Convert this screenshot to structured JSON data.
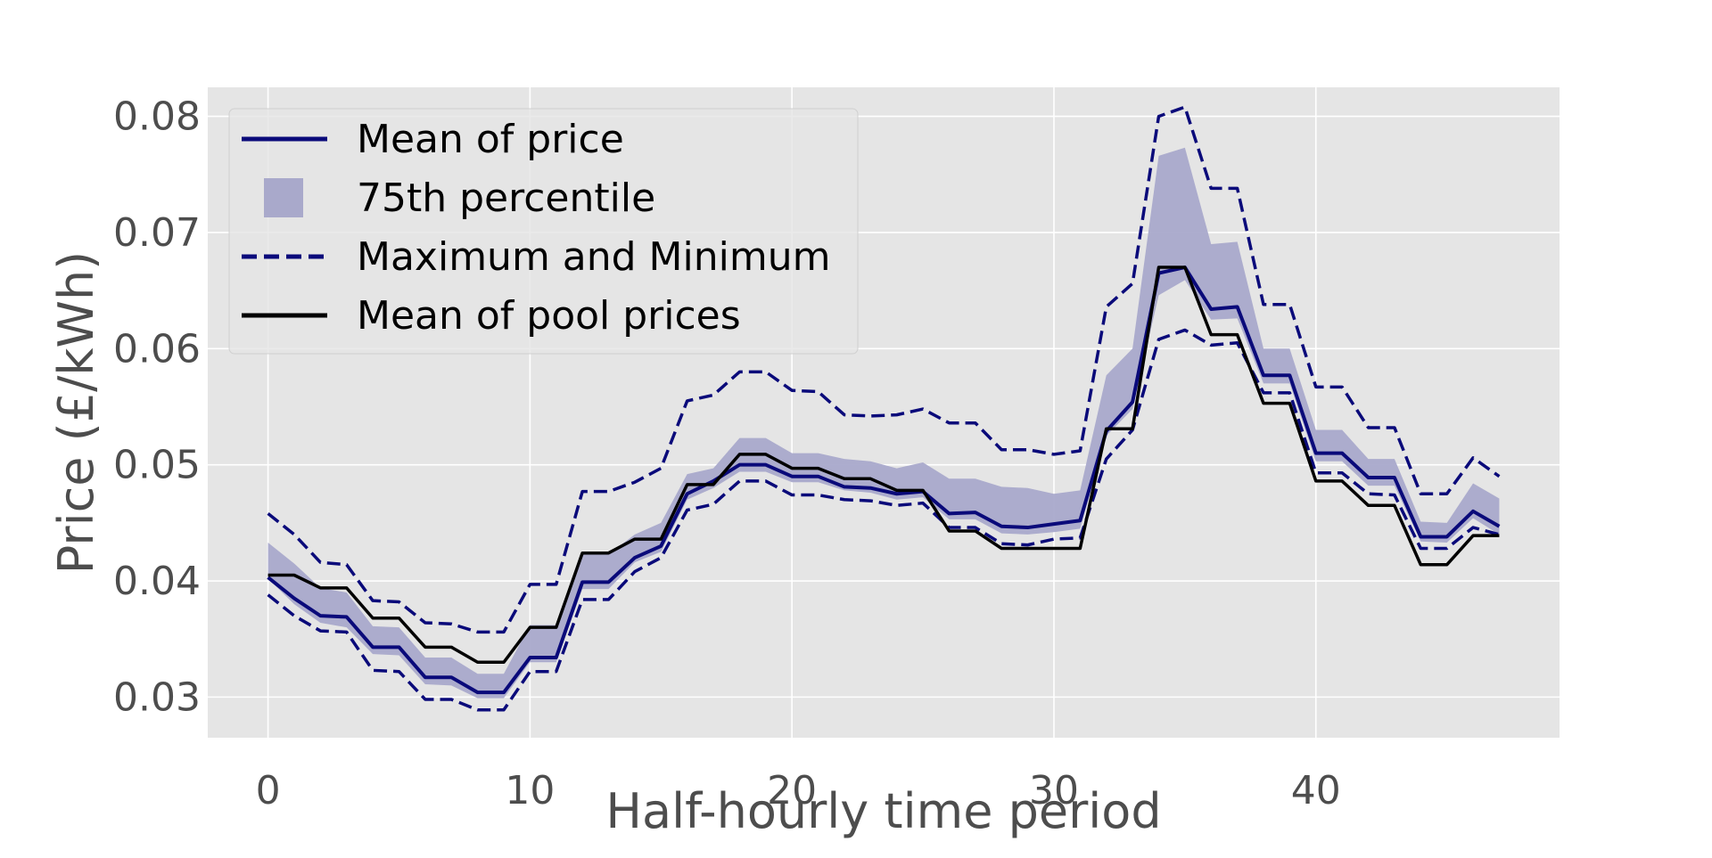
{
  "chart_data": {
    "type": "line",
    "title": "",
    "xlabel": "Half-hourly time period",
    "ylabel": "Price (£/kWh)",
    "xlim": [
      -2.3,
      49.3
    ],
    "ylim": [
      0.0265,
      0.0825
    ],
    "xticks": [
      0,
      10,
      20,
      30,
      40
    ],
    "xtick_labels": [
      "0",
      "10",
      "20",
      "30",
      "40"
    ],
    "yticks": [
      0.03,
      0.04,
      0.05,
      0.06,
      0.07,
      0.08
    ],
    "ytick_labels": [
      "0.03",
      "0.04",
      "0.05",
      "0.06",
      "0.07",
      "0.08"
    ],
    "grid": true,
    "legend_position": "top-left",
    "x": [
      0,
      1,
      2,
      3,
      4,
      5,
      6,
      7,
      8,
      9,
      10,
      11,
      12,
      13,
      14,
      15,
      16,
      17,
      18,
      19,
      20,
      21,
      22,
      23,
      24,
      25,
      26,
      27,
      28,
      29,
      30,
      31,
      32,
      33,
      34,
      35,
      36,
      37,
      38,
      39,
      40,
      41,
      42,
      43,
      44,
      45,
      46,
      47
    ],
    "series": [
      {
        "name": "75th percentile",
        "kind": "band",
        "color": "#a9a9cb",
        "lower": [
          0.0402,
          0.038,
          0.0364,
          0.036,
          0.0337,
          0.0336,
          0.0311,
          0.031,
          0.0299,
          0.0299,
          0.033,
          0.033,
          0.0393,
          0.0393,
          0.0416,
          0.0425,
          0.047,
          0.048,
          0.0494,
          0.0494,
          0.0485,
          0.0485,
          0.0478,
          0.0476,
          0.047,
          0.0472,
          0.0453,
          0.0453,
          0.0441,
          0.044,
          0.0442,
          0.0445,
          0.0525,
          0.0548,
          0.0646,
          0.0659,
          0.0625,
          0.0626,
          0.057,
          0.057,
          0.0503,
          0.0503,
          0.0482,
          0.0482,
          0.0434,
          0.0433,
          0.0454,
          0.044
        ],
        "upper": [
          0.0433,
          0.0415,
          0.0394,
          0.039,
          0.0361,
          0.036,
          0.0334,
          0.0334,
          0.032,
          0.032,
          0.0362,
          0.0362,
          0.0423,
          0.0423,
          0.044,
          0.045,
          0.0492,
          0.0497,
          0.0523,
          0.0523,
          0.051,
          0.051,
          0.0505,
          0.0503,
          0.0497,
          0.0502,
          0.0488,
          0.0488,
          0.0481,
          0.048,
          0.0475,
          0.0478,
          0.0577,
          0.06,
          0.0766,
          0.0773,
          0.069,
          0.0692,
          0.06,
          0.06,
          0.053,
          0.053,
          0.0505,
          0.0505,
          0.0451,
          0.045,
          0.0484,
          0.0471
        ]
      },
      {
        "name": "Mean of price",
        "kind": "line",
        "color": "#0a0a7a",
        "values": [
          0.0403,
          0.0385,
          0.037,
          0.0369,
          0.0343,
          0.0343,
          0.0317,
          0.0317,
          0.0304,
          0.0304,
          0.0334,
          0.0334,
          0.0399,
          0.0399,
          0.042,
          0.043,
          0.0475,
          0.0486,
          0.05,
          0.05,
          0.049,
          0.049,
          0.0481,
          0.048,
          0.0475,
          0.0477,
          0.0458,
          0.0459,
          0.0447,
          0.0446,
          0.0449,
          0.0452,
          0.0529,
          0.0554,
          0.0665,
          0.067,
          0.0634,
          0.0636,
          0.0577,
          0.0577,
          0.051,
          0.051,
          0.0489,
          0.0489,
          0.0438,
          0.0438,
          0.046,
          0.0447
        ]
      },
      {
        "name": "Maximum",
        "kind": "dashed",
        "color": "#0a0a7a",
        "values": [
          0.0458,
          0.044,
          0.0416,
          0.0414,
          0.0383,
          0.0382,
          0.0364,
          0.0363,
          0.0356,
          0.0356,
          0.0397,
          0.0397,
          0.0477,
          0.0477,
          0.0485,
          0.0497,
          0.0555,
          0.056,
          0.058,
          0.058,
          0.0564,
          0.0563,
          0.0543,
          0.0542,
          0.0543,
          0.0548,
          0.0536,
          0.0536,
          0.0513,
          0.0513,
          0.0509,
          0.0512,
          0.0636,
          0.0656,
          0.08,
          0.0808,
          0.0738,
          0.0738,
          0.0638,
          0.0638,
          0.0567,
          0.0567,
          0.0532,
          0.0532,
          0.0475,
          0.0475,
          0.0506,
          0.049
        ]
      },
      {
        "name": "Minimum",
        "kind": "dashed",
        "color": "#0a0a7a",
        "values": [
          0.0388,
          0.037,
          0.0357,
          0.0356,
          0.0323,
          0.0322,
          0.0298,
          0.0298,
          0.0289,
          0.0289,
          0.0322,
          0.0322,
          0.0384,
          0.0384,
          0.0408,
          0.042,
          0.0461,
          0.0466,
          0.0486,
          0.0486,
          0.0474,
          0.0474,
          0.047,
          0.0469,
          0.0465,
          0.0467,
          0.0446,
          0.0446,
          0.0432,
          0.0431,
          0.0436,
          0.0437,
          0.0505,
          0.053,
          0.0608,
          0.0616,
          0.0603,
          0.0605,
          0.0562,
          0.0562,
          0.0493,
          0.0493,
          0.0475,
          0.0474,
          0.0428,
          0.0428,
          0.0446,
          0.044
        ]
      },
      {
        "name": "Mean of pool prices",
        "kind": "line",
        "color": "#000000",
        "values": [
          0.0405,
          0.0405,
          0.0394,
          0.0394,
          0.0368,
          0.0368,
          0.0343,
          0.0343,
          0.033,
          0.033,
          0.036,
          0.036,
          0.0424,
          0.0424,
          0.0436,
          0.0436,
          0.0483,
          0.0483,
          0.0509,
          0.0509,
          0.0497,
          0.0497,
          0.0488,
          0.0488,
          0.0478,
          0.0478,
          0.0443,
          0.0443,
          0.0428,
          0.0428,
          0.0428,
          0.0428,
          0.0531,
          0.0531,
          0.067,
          0.067,
          0.0612,
          0.0612,
          0.0553,
          0.0553,
          0.0486,
          0.0486,
          0.0465,
          0.0465,
          0.0414,
          0.0414,
          0.0439,
          0.0439
        ]
      }
    ],
    "legend": [
      {
        "label": "Mean of price",
        "style": "line",
        "color": "#0a0a7a"
      },
      {
        "label": "75th percentile",
        "style": "patch",
        "color": "#a9a9cb"
      },
      {
        "label": "Maximum and Minimum",
        "style": "dashed",
        "color": "#0a0a7a"
      },
      {
        "label": "Mean of pool prices",
        "style": "line",
        "color": "#000000"
      }
    ]
  }
}
